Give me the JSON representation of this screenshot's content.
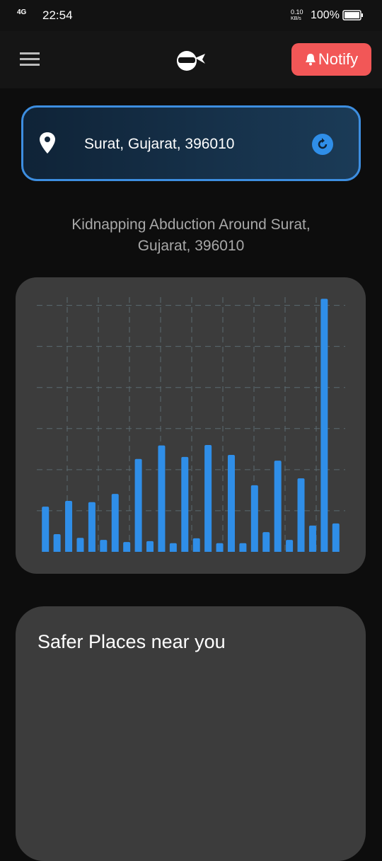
{
  "status_bar": {
    "network": "4G",
    "time": "22:54",
    "speed": "0.10",
    "speed_unit": "KB/s",
    "battery": "100%"
  },
  "header": {
    "notify_button": "Notify"
  },
  "location": {
    "text": "Surat, Gujarat, 396010"
  },
  "heading": "Kidnapping Abduction Around Surat, Gujarat, 396010",
  "chart_data": {
    "type": "bar",
    "values": [
      1.1,
      0.43,
      1.24,
      0.34,
      1.21,
      0.29,
      1.41,
      0.24,
      2.26,
      0.26,
      2.59,
      0.21,
      2.31,
      0.33,
      2.6,
      0.21,
      2.36,
      0.21,
      1.62,
      0.48,
      2.22,
      0.29,
      1.79,
      0.64,
      6.16,
      0.69
    ],
    "color": "#2f8ee8",
    "ylim": [
      0,
      6.2
    ],
    "yticks": [
      1,
      2,
      3,
      4,
      5,
      6
    ],
    "grid": true
  },
  "safer_places": {
    "title": "Safer Places near you"
  }
}
